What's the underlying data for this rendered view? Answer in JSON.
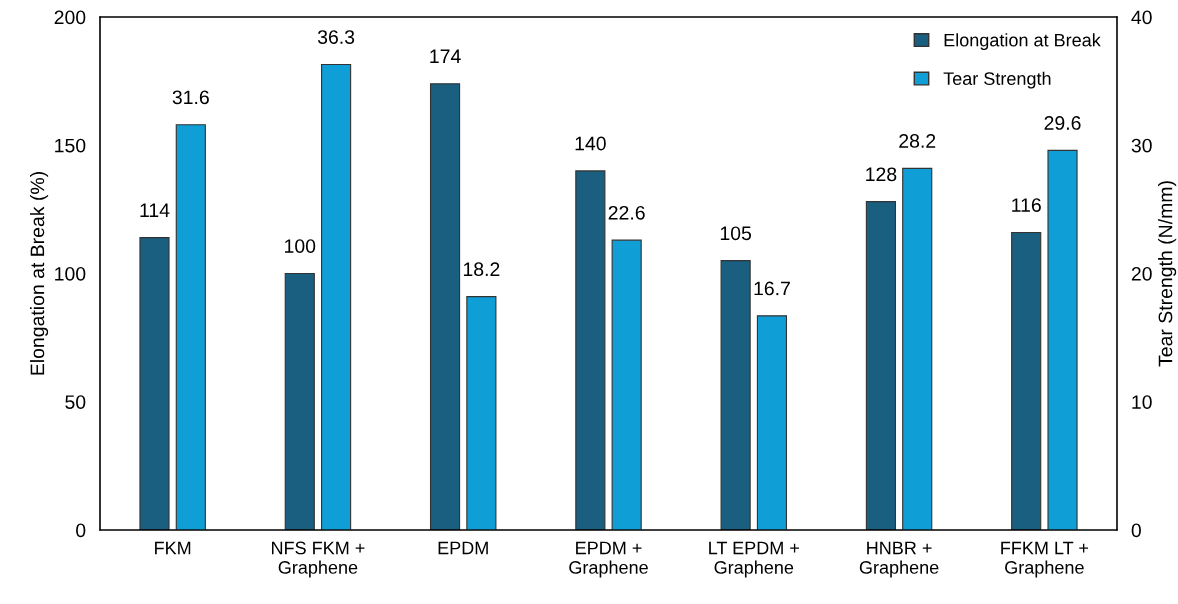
{
  "chart_data": {
    "type": "bar",
    "categories": [
      "FKM",
      "NFS FKM +\nGraphene",
      "EPDM",
      "EPDM +\nGraphene",
      "LT EPDM +\nGraphene",
      "HNBR +\nGraphene",
      "FFKM LT +\nGraphene"
    ],
    "series": [
      {
        "name": "Elongation at Break",
        "color": "#1a5e80",
        "values": [
          114,
          100,
          174,
          140,
          105,
          128,
          116
        ]
      },
      {
        "name": "Tear Strength",
        "color": "#0f9ed5",
        "axis": "y2",
        "values": [
          31.6,
          36.3,
          18.2,
          22.6,
          16.7,
          28.2,
          29.6
        ]
      }
    ],
    "ylabel": "Elongation at Break (%)",
    "y2label": "Tear Strength (N/mm)",
    "ylim": [
      0,
      200
    ],
    "yticks": [
      0,
      50,
      100,
      150,
      200
    ],
    "y2lim": [
      0,
      40
    ],
    "y2ticks": [
      0,
      10,
      20,
      30,
      40
    ],
    "data_labels": true,
    "legend": "top right",
    "grid": false
  }
}
